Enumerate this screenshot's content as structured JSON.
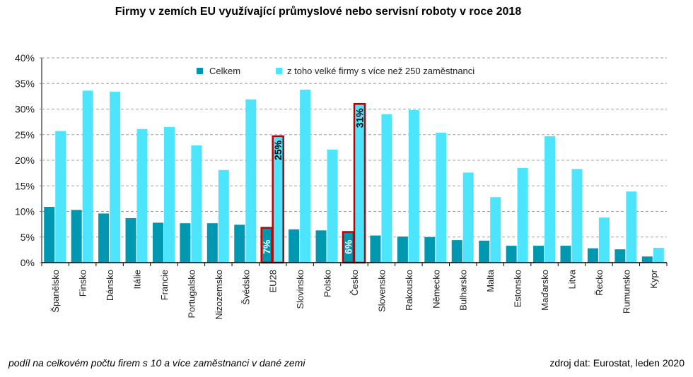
{
  "title": "Firmy v zemích EU využívající průmyslové nebo servisní roboty v roce 2018",
  "footnote": "podíl na celkovém počtu firem s 10 a více zaměstnanci v dané zemi",
  "source": "zdroj dat: Eurostat, leden 2020",
  "colors": {
    "celkem": "#0098b0",
    "velke": "#4de5fd",
    "highlight_border": "#c00000",
    "grid": "#a0a0a0",
    "axis": "#808080"
  },
  "chart_data": {
    "type": "bar",
    "title": "Firmy v zemích EU využívající průmyslové nebo servisní roboty v roce 2018",
    "xlabel": "",
    "ylabel": "",
    "ylim": [
      0,
      40
    ],
    "yticks": [
      "0%",
      "5%",
      "10%",
      "15%",
      "20%",
      "25%",
      "30%",
      "35%",
      "40%"
    ],
    "grid": true,
    "legend_position": "top-center",
    "categories": [
      "Španělsko",
      "Finsko",
      "Dánsko",
      "Itálie",
      "Francie",
      "Portugalsko",
      "Nizozemsko",
      "Švédsko",
      "EU28",
      "Slovinsko",
      "Polsko",
      "Česko",
      "Slovensko",
      "Rakousko",
      "Německo",
      "Bulharsko",
      "Malta",
      "Estonsko",
      "Maďarsko",
      "Litva",
      "Řecko",
      "Rumunsko",
      "Kypr"
    ],
    "series": [
      {
        "name": "Celkem",
        "values": [
          10.9,
          10.3,
          9.6,
          8.7,
          7.8,
          7.7,
          7.7,
          7.4,
          6.8,
          6.5,
          6.3,
          6.0,
          5.3,
          5.1,
          5.0,
          4.4,
          4.3,
          3.3,
          3.3,
          3.3,
          2.8,
          2.6,
          1.2
        ]
      },
      {
        "name": "z toho velké firmy s více než 250 zaměstnanci",
        "values": [
          25.7,
          33.6,
          33.4,
          26.1,
          26.5,
          22.9,
          18.1,
          31.9,
          24.7,
          33.8,
          22.1,
          31.0,
          29.0,
          29.8,
          25.4,
          17.6,
          12.8,
          18.5,
          24.7,
          18.3,
          8.8,
          13.9,
          2.9
        ]
      }
    ],
    "highlighted_categories": [
      "EU28",
      "Česko"
    ],
    "data_labels": [
      {
        "category": "EU28",
        "series": "Celkem",
        "text": "7%"
      },
      {
        "category": "EU28",
        "series": "z toho velké firmy s více než 250 zaměstnanci",
        "text": "25%"
      },
      {
        "category": "Česko",
        "series": "Celkem",
        "text": "6%"
      },
      {
        "category": "Česko",
        "series": "z toho velké firmy s více než 250 zaměstnanci",
        "text": "31%"
      }
    ]
  }
}
